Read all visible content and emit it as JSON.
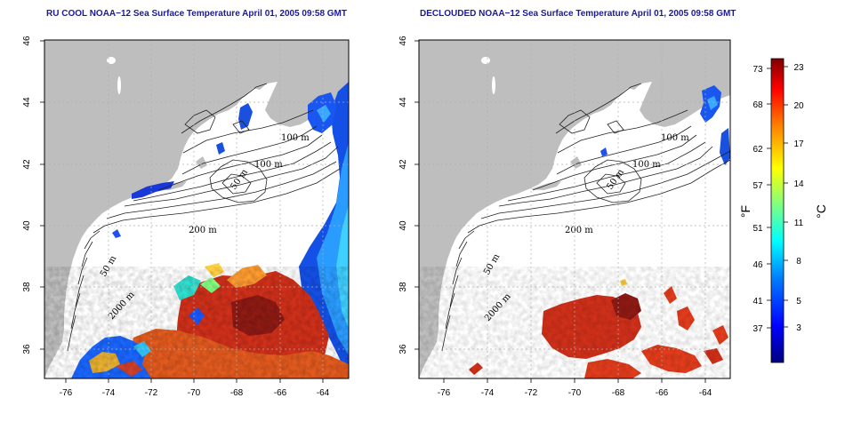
{
  "panels": [
    {
      "id": "left",
      "title": "RU COOL NOAA−12 Sea Surface Temperature April 01, 2005 09:58 GMT",
      "contour_labels": [
        "100 m",
        "100 m",
        "50 m",
        "200 m",
        "50 m",
        "2000 m"
      ],
      "lon_ticks": [
        "-76",
        "-74",
        "-72",
        "-70",
        "-68",
        "-66",
        "-64"
      ],
      "lat_ticks": [
        "36",
        "38",
        "40",
        "42",
        "44",
        "46"
      ]
    },
    {
      "id": "right",
      "title": "DECLOUDED NOAA−12 Sea Surface Temperature April 01, 2005 09:58 GMT",
      "contour_labels": [
        "100 m",
        "100 m",
        "50 m",
        "200 m",
        "50 m",
        "2000 m"
      ],
      "lon_ticks": [
        "-76",
        "-74",
        "-72",
        "-70",
        "-68",
        "-66",
        "-64"
      ],
      "lat_ticks": [
        "36",
        "38",
        "40",
        "42",
        "44",
        "46"
      ]
    }
  ],
  "colorbar": {
    "fahrenheit_label": "°F",
    "celsius_label": "°C",
    "fahrenheit_ticks": [
      "73",
      "68",
      "62",
      "57",
      "51",
      "46",
      "41",
      "37"
    ],
    "celsius_ticks": [
      "23",
      "20",
      "17",
      "14",
      "11",
      "8",
      "5",
      "3"
    ],
    "colors": [
      "#000080",
      "#0000ff",
      "#0080ff",
      "#00ffff",
      "#80ff80",
      "#ffff00",
      "#ff8000",
      "#ff0000",
      "#800000"
    ]
  },
  "colors": {
    "land": "#bebebe",
    "ocean": "#ffffff",
    "title": "#1a1a9a",
    "grid": "#b0b0b0"
  }
}
